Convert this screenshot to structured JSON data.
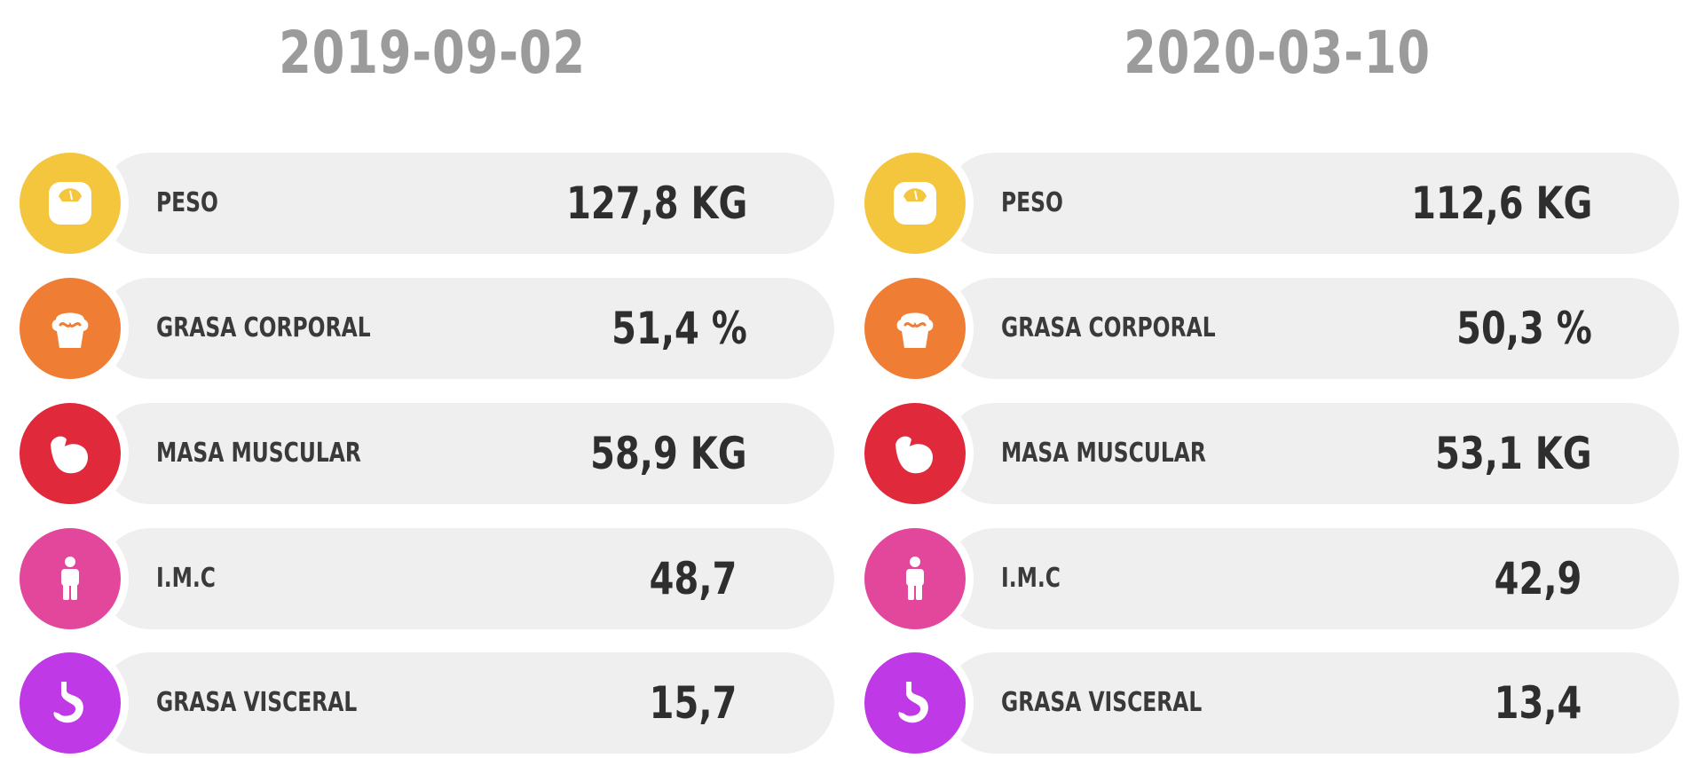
{
  "colors": {
    "peso": "#f4c63d",
    "grasa_corporal": "#ef7d34",
    "masa_muscular": "#e0293a",
    "imc": "#e2479c",
    "grasa_visceral": "#c039e6",
    "pill_background": "#efefef",
    "date_text": "#9b9b9b"
  },
  "icons": {
    "peso": "scale-icon",
    "grasa_corporal": "body-fat-icon",
    "masa_muscular": "muscle-arm-icon",
    "imc": "person-icon",
    "grasa_visceral": "stomach-icon"
  },
  "columns": [
    {
      "date": "2019-09-02",
      "metrics": [
        {
          "label": "PESO",
          "value": "127,8 KG"
        },
        {
          "label": "GRASA CORPORAL",
          "value": "51,4 %"
        },
        {
          "label": "MASA MUSCULAR",
          "value": "58,9 KG"
        },
        {
          "label": "I.M.C",
          "value": "48,7"
        },
        {
          "label": "GRASA VISCERAL",
          "value": "15,7"
        }
      ]
    },
    {
      "date": "2020-03-10",
      "metrics": [
        {
          "label": "PESO",
          "value": "112,6 KG"
        },
        {
          "label": "GRASA CORPORAL",
          "value": "50,3 %"
        },
        {
          "label": "MASA MUSCULAR",
          "value": "53,1 KG"
        },
        {
          "label": "I.M.C",
          "value": "42,9"
        },
        {
          "label": "GRASA VISCERAL",
          "value": "13,4"
        }
      ]
    }
  ]
}
